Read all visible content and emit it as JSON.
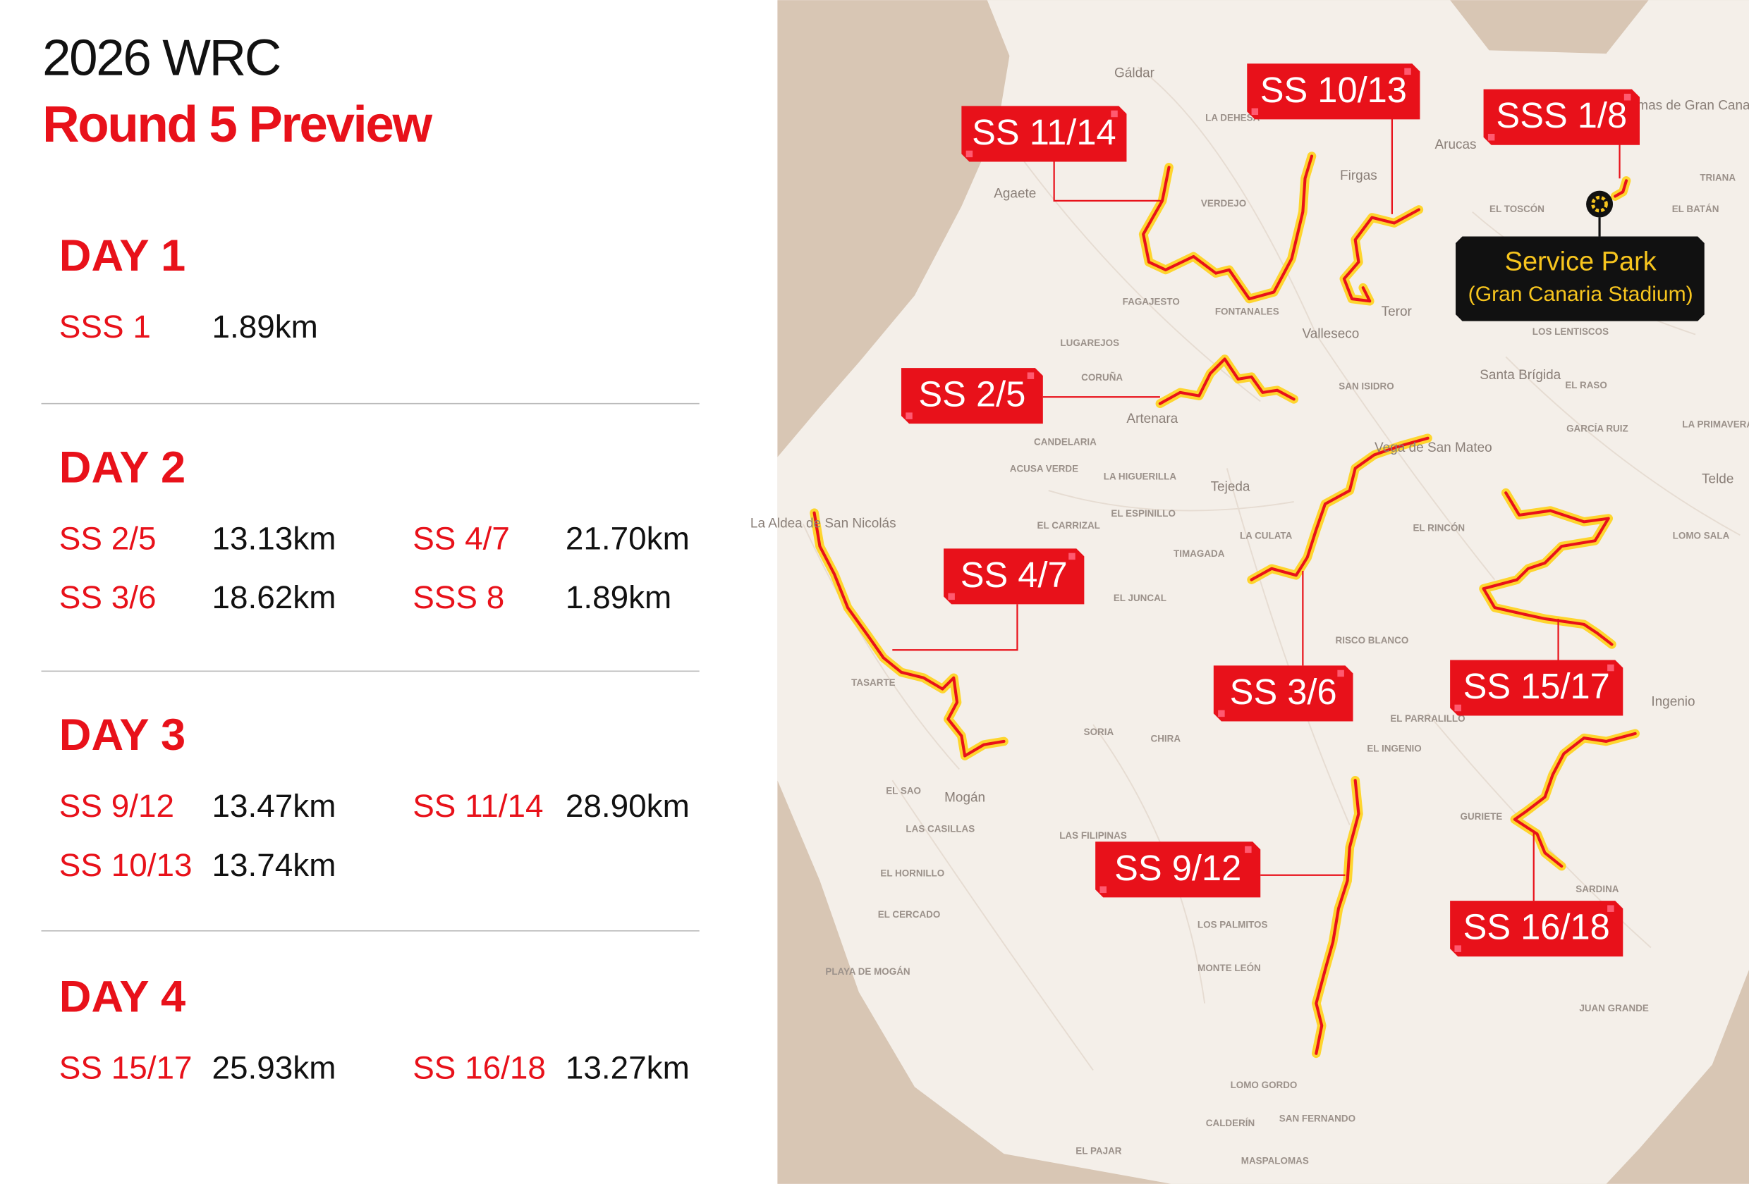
{
  "header": {
    "title": "2026 WRC",
    "subtitle": "Round 5 Preview"
  },
  "days": [
    {
      "label": "DAY 1",
      "stages": [
        {
          "name": "SSS 1",
          "distance": "1.89km"
        }
      ]
    },
    {
      "label": "DAY 2",
      "stages": [
        {
          "name": "SS 2/5",
          "distance": "13.13km"
        },
        {
          "name": "SS 4/7",
          "distance": "21.70km"
        },
        {
          "name": "SS 3/6",
          "distance": "18.62km"
        },
        {
          "name": "SSS 8",
          "distance": "1.89km"
        }
      ]
    },
    {
      "label": "DAY 3",
      "stages": [
        {
          "name": "SS 9/12",
          "distance": "13.47km"
        },
        {
          "name": "SS 11/14",
          "distance": "28.90km"
        },
        {
          "name": "SS 10/13",
          "distance": "13.74km"
        }
      ]
    },
    {
      "label": "DAY 4",
      "stages": [
        {
          "name": "SS 15/17",
          "distance": "25.93km"
        },
        {
          "name": "SS 16/18",
          "distance": "13.27km"
        }
      ]
    }
  ],
  "map": {
    "stage_labels": [
      "SS 11/14",
      "SS 10/13",
      "SSS 1/8",
      "SS 2/5",
      "SS 4/7",
      "SS 3/6",
      "SS 15/17",
      "SS 16/18",
      "SS 9/12"
    ],
    "service_park": {
      "title": "Service Park",
      "subtitle": "(Gran Canaria Stadium)"
    },
    "towns": [
      "Gáldar",
      "Agaete",
      "Arucas",
      "Firgas",
      "Teror",
      "Valleseco",
      "Santa Brígida",
      "Artenara",
      "Tejeda",
      "Vega de San Mateo",
      "Mogán",
      "Ingenio",
      "Telde",
      "La Aldea de San Nicolás",
      "Las Palmas de Gran Canaria"
    ],
    "localities": [
      "LA DEHESA",
      "VERDEJO",
      "FONTANALES",
      "FAGAJESTO",
      "LUGAREJOS",
      "CORUÑA",
      "CANDELARIA",
      "ACUSA VERDE",
      "LA HIGUERILLA",
      "EL ESPINILLO",
      "EL CARRIZAL",
      "TIMAGADA",
      "LA CULATA",
      "EL JUNCAL",
      "TASARTE",
      "SORIA",
      "CHIRA",
      "EL SAO",
      "LAS FILIPINAS",
      "EL HORNILLO",
      "EL CERCADO",
      "LOS PALMITOS",
      "MONTE LEÓN",
      "LOMO GORDO",
      "SAN FERNANDO",
      "EL RINCÓN",
      "RISCO BLANCO",
      "EL INGENIO",
      "GURIETE",
      "SARDINA",
      "JUAN GRANDE",
      "EL TOSCÓN",
      "EL BATÁN",
      "TRIANA",
      "LOS LENTISCOS",
      "EL RASO",
      "GARCÍA RUIZ",
      "SAN ISIDRO",
      "LA PRIMAVERA",
      "LOMO SALA",
      "EL PARRALILLO",
      "LAS CASILLAS",
      "PLAYA DE MOGÁN",
      "CALDERÍN",
      "MASPALOMAS",
      "EL PAJAR"
    ]
  }
}
